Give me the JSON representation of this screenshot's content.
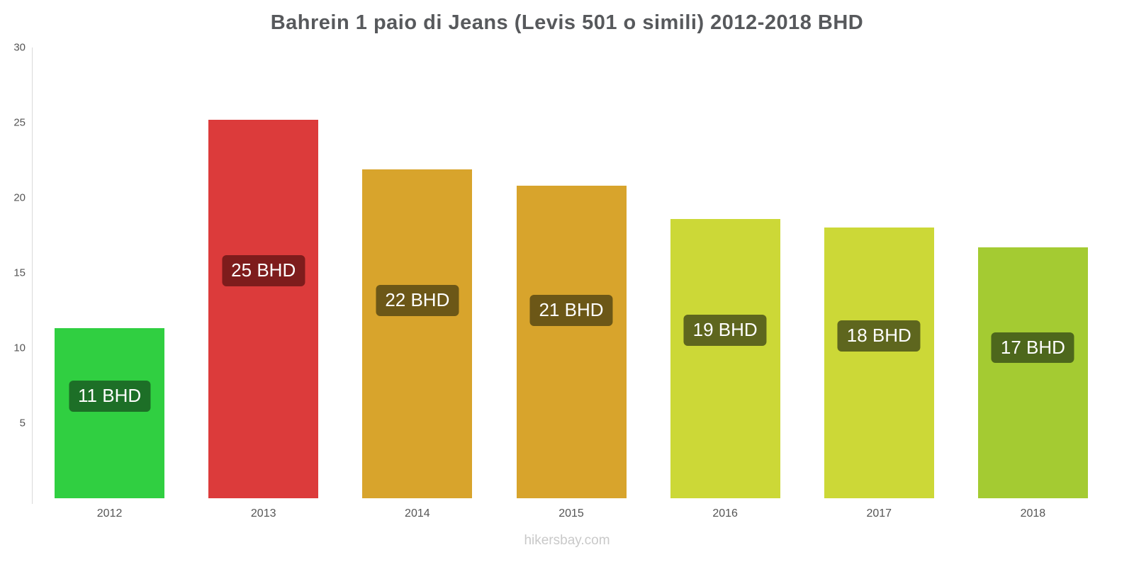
{
  "footer": "hikersbay.com",
  "chart_data": {
    "type": "bar",
    "title": "Bahrein 1 paio di Jeans (Levis 501 o simili) 2012-2018 BHD",
    "categories": [
      "2012",
      "2013",
      "2014",
      "2015",
      "2016",
      "2017",
      "2018"
    ],
    "values": [
      11.3,
      25.2,
      21.9,
      20.8,
      18.6,
      18.0,
      16.7
    ],
    "labels": [
      "11 BHD",
      "25 BHD",
      "22 BHD",
      "21 BHD",
      "19 BHD",
      "18 BHD",
      "17 BHD"
    ],
    "bar_colors": [
      "#30cf41",
      "#dc3b3b",
      "#d8a42c",
      "#d8a42c",
      "#ccd837",
      "#ccd837",
      "#a4cb32"
    ],
    "label_bg_colors": [
      "#1d6f27",
      "#7e1c1c",
      "#6c5717",
      "#6c5717",
      "#5e661e",
      "#5e661e",
      "#4d671c"
    ],
    "xlabel": "",
    "ylabel": "",
    "ylim": [
      0,
      30
    ],
    "yticks": [
      5,
      10,
      15,
      20,
      25,
      30
    ],
    "grid": false,
    "legend": false,
    "currency": "BHD"
  }
}
